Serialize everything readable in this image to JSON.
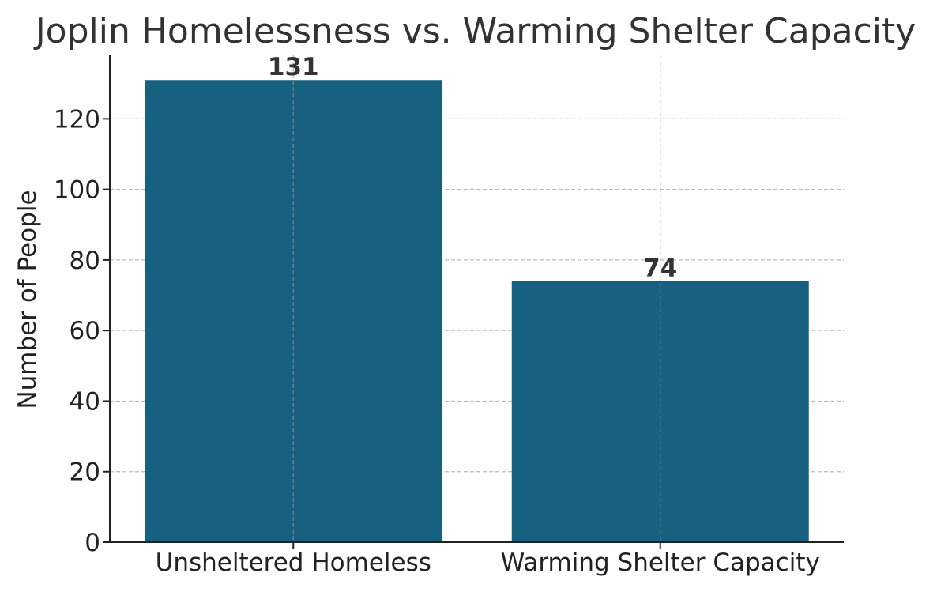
{
  "chart_data": {
    "type": "bar",
    "title": "Joplin Homelessness vs. Warming Shelter Capacity",
    "xlabel": "",
    "ylabel": "Number of People",
    "categories": [
      "Unsheltered Homeless",
      "Warming Shelter Capacity"
    ],
    "values": [
      131,
      74
    ],
    "data_labels": [
      "131",
      "74"
    ],
    "ylim": [
      0,
      138
    ],
    "yticks": [
      0,
      20,
      40,
      60,
      80,
      100,
      120
    ],
    "ytick_labels": [
      "0",
      "20",
      "40",
      "60",
      "80",
      "100",
      "120"
    ],
    "grid": true,
    "grid_style": "dashed",
    "bar_color": "#17607f",
    "grid_color": "#bbbbbb",
    "axis_color": "#222222"
  }
}
